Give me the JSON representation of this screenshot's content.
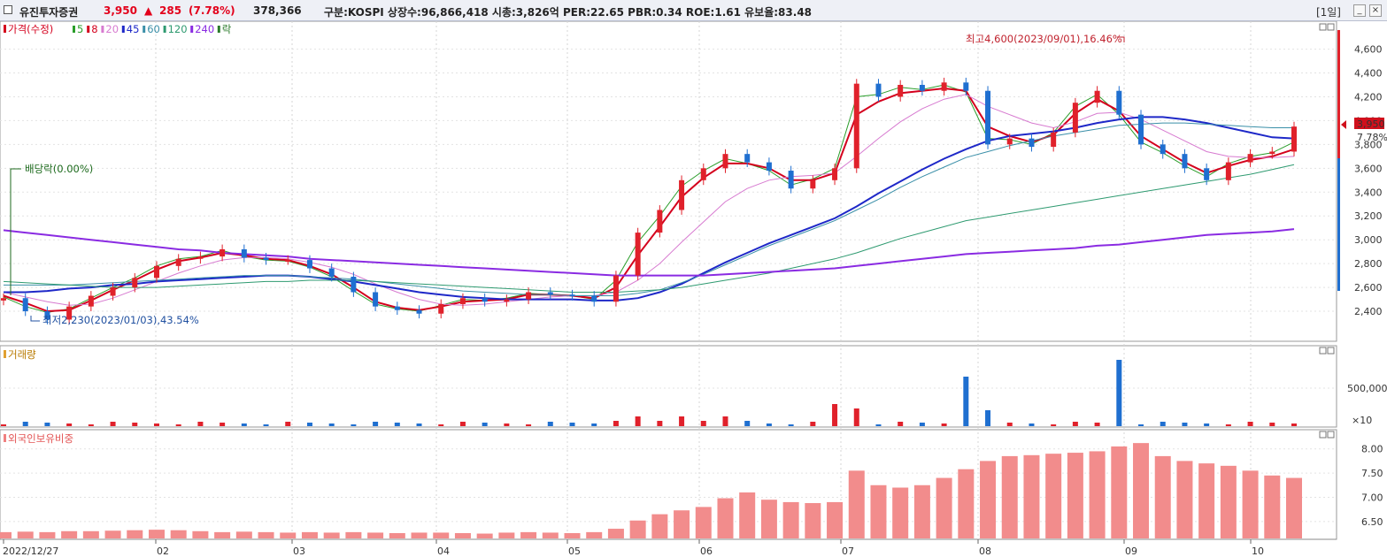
{
  "header": {
    "stock_name": "유진투자증권",
    "price": "3,950",
    "change_arrow": "▲",
    "change": "285",
    "change_pct": "(7.78%)",
    "volume": "378,366",
    "info": "구분:KOSPI 상장수:96,866,418 시총:3,826억 PER:22.65 PBR:0.34 ROE:1.61 유보율:83.48",
    "period": "[1일]",
    "btn_min": "_",
    "btn_close": "×"
  },
  "legend": {
    "price_items": [
      {
        "label": "가격(수정)",
        "color": "#d4001d"
      },
      {
        "label": "5",
        "color": "#2a9d2a"
      },
      {
        "label": "8",
        "color": "#d4001d"
      },
      {
        "label": "20",
        "color": "#d77ad0"
      },
      {
        "label": "45",
        "color": "#1e28c8"
      },
      {
        "label": "60",
        "color": "#3a8fa8"
      },
      {
        "label": "120",
        "color": "#2e9a70"
      },
      {
        "label": "240",
        "color": "#8a2be2"
      },
      {
        "label": "락",
        "color": "#2a7a2a"
      }
    ],
    "volume_label": "거래량",
    "foreign_label": "외국인보유비중"
  },
  "annotations": {
    "high": "최고4,600(2023/09/01),16.46%",
    "low": "최저2,230(2023/01/03),43.54%",
    "dividend": "배당락(0.00%)",
    "current_price": "3,950",
    "current_pct": "7.78%",
    "volume_unit": "×10"
  },
  "colors": {
    "up": "#e0212b",
    "down": "#1f6fd0",
    "bg": "#ffffff",
    "grid": "#c9c9c9"
  },
  "chart_data": [
    {
      "type": "candlestick",
      "title": "유진투자증권",
      "x_tick_labels": [
        "2022/12/27",
        "02",
        "03",
        "04",
        "05",
        "06",
        "07",
        "08",
        "09",
        "10"
      ],
      "y_tick_labels": [
        "2,400",
        "2,600",
        "2,800",
        "3,000",
        "3,200",
        "3,400",
        "3,600",
        "3,800",
        "4,000",
        "4,200",
        "4,400",
        "4,600"
      ],
      "ylim": [
        2200,
        4760
      ],
      "weekly_close": [
        2510,
        2400,
        2330,
        2440,
        2530,
        2600,
        2680,
        2780,
        2840,
        2860,
        2920,
        2850,
        2830,
        2830,
        2760,
        2690,
        2560,
        2440,
        2410,
        2380,
        2460,
        2510,
        2480,
        2500,
        2560,
        2540,
        2530,
        2480,
        2700,
        3060,
        3250,
        3500,
        3600,
        3720,
        3650,
        3580,
        3430,
        3500,
        3600,
        4310,
        4200,
        4300,
        4250,
        4320,
        4250,
        3800,
        3850,
        3780,
        3900,
        4150,
        4250,
        4050,
        3800,
        3720,
        3600,
        3500,
        3650,
        3720,
        3740,
        3950
      ],
      "moving_averages": [
        {
          "name": "5",
          "values": [
            2520,
            2440,
            2390,
            2420,
            2510,
            2600,
            2680,
            2780,
            2840,
            2860,
            2910,
            2860,
            2830,
            2820,
            2770,
            2690,
            2570,
            2460,
            2420,
            2400,
            2450,
            2500,
            2490,
            2510,
            2550,
            2540,
            2530,
            2500,
            2660,
            2980,
            3200,
            3450,
            3580,
            3680,
            3640,
            3580,
            3460,
            3510,
            3600,
            4200,
            4220,
            4280,
            4260,
            4300,
            4240,
            3850,
            3840,
            3800,
            3900,
            4120,
            4220,
            4050,
            3820,
            3730,
            3620,
            3530,
            3640,
            3700,
            3730,
            3820
          ]
        },
        {
          "name": "8",
          "values": [
            2530,
            2470,
            2400,
            2410,
            2490,
            2580,
            2660,
            2750,
            2820,
            2850,
            2890,
            2870,
            2840,
            2830,
            2780,
            2710,
            2600,
            2480,
            2430,
            2410,
            2440,
            2480,
            2490,
            2500,
            2540,
            2540,
            2530,
            2510,
            2600,
            2870,
            3110,
            3360,
            3520,
            3640,
            3640,
            3600,
            3500,
            3500,
            3560,
            4050,
            4160,
            4230,
            4250,
            4270,
            4250,
            3950,
            3870,
            3820,
            3880,
            4060,
            4180,
            4080,
            3870,
            3760,
            3650,
            3560,
            3620,
            3670,
            3700,
            3760
          ]
        },
        {
          "name": "20",
          "values": [
            2560,
            2520,
            2480,
            2450,
            2460,
            2510,
            2580,
            2650,
            2720,
            2780,
            2830,
            2850,
            2850,
            2840,
            2810,
            2770,
            2710,
            2630,
            2560,
            2500,
            2460,
            2450,
            2460,
            2480,
            2500,
            2520,
            2530,
            2530,
            2560,
            2660,
            2800,
            2980,
            3150,
            3320,
            3430,
            3500,
            3530,
            3540,
            3560,
            3700,
            3850,
            3990,
            4100,
            4180,
            4220,
            4120,
            4050,
            3980,
            3940,
            3990,
            4060,
            4070,
            4010,
            3920,
            3830,
            3740,
            3700,
            3690,
            3690,
            3700
          ]
        },
        {
          "name": "45",
          "values": [
            2560,
            2560,
            2570,
            2590,
            2600,
            2620,
            2630,
            2650,
            2660,
            2670,
            2680,
            2690,
            2700,
            2700,
            2690,
            2670,
            2650,
            2620,
            2590,
            2560,
            2540,
            2520,
            2510,
            2500,
            2500,
            2500,
            2500,
            2490,
            2490,
            2510,
            2560,
            2630,
            2720,
            2810,
            2890,
            2970,
            3040,
            3110,
            3180,
            3280,
            3390,
            3490,
            3590,
            3680,
            3760,
            3830,
            3870,
            3890,
            3910,
            3940,
            3980,
            4010,
            4030,
            4030,
            4010,
            3980,
            3940,
            3900,
            3860,
            3850
          ]
        },
        {
          "name": "60",
          "values": [
            2620,
            2620,
            2620,
            2620,
            2630,
            2640,
            2650,
            2660,
            2670,
            2680,
            2690,
            2700,
            2700,
            2700,
            2690,
            2680,
            2670,
            2650,
            2630,
            2610,
            2590,
            2570,
            2560,
            2550,
            2540,
            2540,
            2530,
            2530,
            2530,
            2550,
            2580,
            2640,
            2710,
            2790,
            2870,
            2950,
            3020,
            3090,
            3160,
            3250,
            3340,
            3440,
            3530,
            3610,
            3690,
            3740,
            3790,
            3830,
            3870,
            3900,
            3930,
            3960,
            3970,
            3980,
            3980,
            3970,
            3960,
            3950,
            3940,
            3940
          ]
        },
        {
          "name": "120",
          "values": [
            2650,
            2640,
            2630,
            2620,
            2610,
            2600,
            2600,
            2600,
            2610,
            2620,
            2630,
            2640,
            2650,
            2650,
            2660,
            2660,
            2660,
            2650,
            2640,
            2630,
            2620,
            2610,
            2600,
            2590,
            2580,
            2570,
            2560,
            2560,
            2560,
            2570,
            2580,
            2600,
            2630,
            2660,
            2690,
            2720,
            2760,
            2800,
            2840,
            2890,
            2950,
            3010,
            3060,
            3110,
            3160,
            3190,
            3220,
            3250,
            3280,
            3310,
            3340,
            3370,
            3400,
            3430,
            3460,
            3490,
            3520,
            3550,
            3590,
            3630
          ]
        },
        {
          "name": "240",
          "values": [
            3080,
            3060,
            3040,
            3020,
            3000,
            2980,
            2960,
            2940,
            2920,
            2910,
            2890,
            2880,
            2870,
            2860,
            2840,
            2830,
            2820,
            2810,
            2800,
            2790,
            2780,
            2770,
            2760,
            2750,
            2740,
            2730,
            2720,
            2710,
            2700,
            2700,
            2700,
            2700,
            2700,
            2710,
            2720,
            2730,
            2740,
            2750,
            2760,
            2780,
            2800,
            2820,
            2840,
            2860,
            2880,
            2890,
            2900,
            2910,
            2920,
            2930,
            2950,
            2960,
            2980,
            3000,
            3020,
            3040,
            3050,
            3060,
            3070,
            3090
          ]
        }
      ]
    },
    {
      "type": "bar",
      "title": "거래량",
      "y_tick_labels": [
        "500,000"
      ],
      "unit_note": "×10",
      "peaks": [
        {
          "month": "07",
          "note": "tall red bar near start of July"
        },
        {
          "month": "08",
          "note": "tall blue bar at start of August"
        },
        {
          "month": "09",
          "note": "tallest blue bar at start of September"
        }
      ]
    },
    {
      "type": "bar",
      "title": "외국인보유비중",
      "y_tick_labels": [
        "6.50",
        "7.00",
        "7.50",
        "8.00"
      ],
      "ylim": [
        6.15,
        8.25
      ],
      "weekly_values": [
        6.28,
        6.29,
        6.28,
        6.3,
        6.3,
        6.31,
        6.32,
        6.33,
        6.32,
        6.3,
        6.28,
        6.29,
        6.28,
        6.27,
        6.28,
        6.27,
        6.28,
        6.27,
        6.26,
        6.27,
        6.27,
        6.26,
        6.25,
        6.27,
        6.28,
        6.27,
        6.26,
        6.28,
        6.35,
        6.52,
        6.65,
        6.73,
        6.8,
        6.98,
        7.1,
        6.95,
        6.9,
        6.88,
        6.9,
        7.55,
        7.25,
        7.2,
        7.25,
        7.4,
        7.58,
        7.75,
        7.85,
        7.87,
        7.9,
        7.92,
        7.95,
        8.05,
        8.12,
        7.85,
        7.75,
        7.7,
        7.65,
        7.55,
        7.45,
        7.4
      ]
    }
  ]
}
